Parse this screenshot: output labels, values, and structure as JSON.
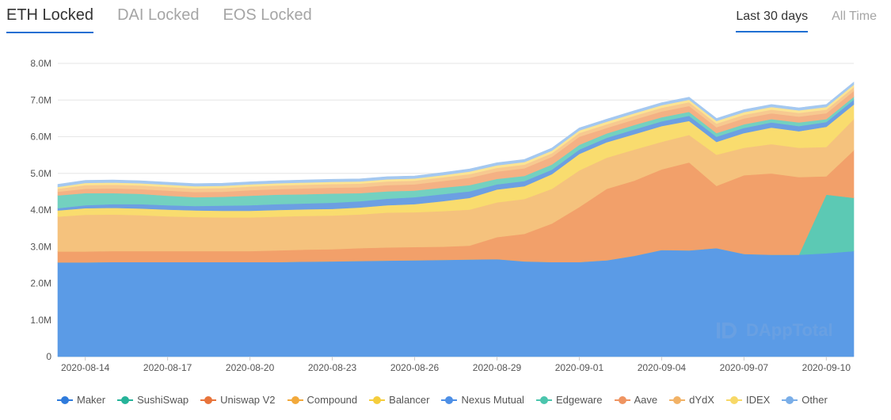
{
  "tabs": [
    "ETH Locked",
    "DAI Locked",
    "EOS Locked"
  ],
  "ranges": [
    "Last 30 days",
    "All Time"
  ],
  "watermark": "DAppTotal",
  "chart_data": {
    "type": "area",
    "stacked": true,
    "x": [
      "2020-08-13",
      "2020-08-14",
      "2020-08-15",
      "2020-08-16",
      "2020-08-17",
      "2020-08-18",
      "2020-08-19",
      "2020-08-20",
      "2020-08-21",
      "2020-08-22",
      "2020-08-23",
      "2020-08-24",
      "2020-08-25",
      "2020-08-26",
      "2020-08-27",
      "2020-08-28",
      "2020-08-29",
      "2020-08-30",
      "2020-08-31",
      "2020-09-01",
      "2020-09-02",
      "2020-09-03",
      "2020-09-04",
      "2020-09-05",
      "2020-09-06",
      "2020-09-07",
      "2020-09-08",
      "2020-09-09",
      "2020-09-10",
      "2020-09-11"
    ],
    "x_ticks": [
      "2020-08-14",
      "2020-08-17",
      "2020-08-20",
      "2020-08-23",
      "2020-08-26",
      "2020-08-29",
      "2020-09-01",
      "2020-09-04",
      "2020-09-07",
      "2020-09-10"
    ],
    "y_ticks": [
      "0",
      "1.0M",
      "2.0M",
      "3.0M",
      "4.0M",
      "5.0M",
      "6.0M",
      "7.0M",
      "8.0M"
    ],
    "ylim": [
      0,
      8.0
    ],
    "y_unit": "M",
    "grid": true,
    "legend_position": "bottom",
    "series": [
      {
        "name": "Maker",
        "color": "#5b9be6",
        "values": [
          2.57,
          2.57,
          2.58,
          2.58,
          2.58,
          2.58,
          2.58,
          2.58,
          2.58,
          2.59,
          2.6,
          2.61,
          2.62,
          2.63,
          2.64,
          2.65,
          2.66,
          2.6,
          2.58,
          2.58,
          2.63,
          2.75,
          2.91,
          2.9,
          2.96,
          2.8,
          2.78,
          2.78,
          2.82,
          2.88
        ]
      },
      {
        "name": "SushiSwap",
        "color": "#5cc9b4",
        "values": [
          0,
          0,
          0,
          0,
          0,
          0,
          0,
          0,
          0,
          0,
          0,
          0,
          0,
          0,
          0,
          0,
          0,
          0,
          0,
          0,
          0,
          0,
          0,
          0,
          0,
          0,
          0,
          0,
          1.6,
          1.45
        ]
      },
      {
        "name": "Uniswap V2",
        "color": "#f2a06a",
        "values": [
          0.3,
          0.3,
          0.3,
          0.3,
          0.3,
          0.3,
          0.3,
          0.3,
          0.32,
          0.33,
          0.33,
          0.35,
          0.36,
          0.36,
          0.36,
          0.38,
          0.6,
          0.75,
          1.05,
          1.5,
          1.95,
          2.05,
          2.2,
          2.4,
          1.7,
          2.15,
          2.22,
          2.12,
          0.5,
          1.3
        ]
      },
      {
        "name": "Compound",
        "color": "#f5c27d",
        "values": [
          0.95,
          1.0,
          1.0,
          0.98,
          0.95,
          0.93,
          0.92,
          0.92,
          0.92,
          0.92,
          0.92,
          0.92,
          0.95,
          0.95,
          0.97,
          0.98,
          0.95,
          0.95,
          0.95,
          1.0,
          0.85,
          0.85,
          0.75,
          0.75,
          0.85,
          0.75,
          0.8,
          0.8,
          0.8,
          0.85
        ]
      },
      {
        "name": "Balancer",
        "color": "#f9dc6e",
        "values": [
          0.17,
          0.18,
          0.18,
          0.18,
          0.18,
          0.18,
          0.18,
          0.18,
          0.18,
          0.18,
          0.18,
          0.19,
          0.2,
          0.22,
          0.27,
          0.32,
          0.35,
          0.35,
          0.4,
          0.45,
          0.42,
          0.42,
          0.43,
          0.38,
          0.35,
          0.4,
          0.45,
          0.45,
          0.55,
          0.4
        ]
      },
      {
        "name": "Nexus Mutual",
        "color": "#6c9fe2",
        "values": [
          0.06,
          0.08,
          0.1,
          0.12,
          0.12,
          0.12,
          0.14,
          0.15,
          0.16,
          0.16,
          0.17,
          0.17,
          0.18,
          0.19,
          0.19,
          0.18,
          0.14,
          0.14,
          0.12,
          0.12,
          0.12,
          0.13,
          0.13,
          0.14,
          0.14,
          0.14,
          0.14,
          0.14,
          0.13,
          0.13
        ]
      },
      {
        "name": "Edgeware",
        "color": "#73d1c0",
        "values": [
          0.35,
          0.33,
          0.3,
          0.28,
          0.26,
          0.24,
          0.24,
          0.26,
          0.26,
          0.25,
          0.25,
          0.22,
          0.2,
          0.18,
          0.18,
          0.17,
          0.15,
          0.14,
          0.14,
          0.13,
          0.12,
          0.12,
          0.11,
          0.11,
          0.1,
          0.1,
          0.09,
          0.1,
          0.08,
          0.08
        ]
      },
      {
        "name": "Aave",
        "color": "#f4b184",
        "values": [
          0.1,
          0.12,
          0.13,
          0.13,
          0.14,
          0.14,
          0.14,
          0.15,
          0.15,
          0.16,
          0.16,
          0.16,
          0.17,
          0.17,
          0.18,
          0.2,
          0.2,
          0.21,
          0.21,
          0.22,
          0.15,
          0.15,
          0.16,
          0.16,
          0.16,
          0.16,
          0.16,
          0.16,
          0.16,
          0.16
        ]
      },
      {
        "name": "dYdX",
        "color": "#f7c990",
        "values": [
          0.08,
          0.1,
          0.1,
          0.1,
          0.1,
          0.1,
          0.1,
          0.1,
          0.1,
          0.1,
          0.1,
          0.1,
          0.1,
          0.1,
          0.1,
          0.1,
          0.1,
          0.1,
          0.1,
          0.1,
          0.1,
          0.1,
          0.1,
          0.1,
          0.1,
          0.1,
          0.1,
          0.1,
          0.1,
          0.1
        ]
      },
      {
        "name": "IDEX",
        "color": "#fbe493",
        "values": [
          0.05,
          0.06,
          0.06,
          0.06,
          0.06,
          0.06,
          0.06,
          0.06,
          0.06,
          0.06,
          0.06,
          0.06,
          0.06,
          0.06,
          0.06,
          0.07,
          0.07,
          0.07,
          0.07,
          0.07,
          0.07,
          0.07,
          0.07,
          0.07,
          0.07,
          0.07,
          0.07,
          0.07,
          0.07,
          0.07
        ]
      },
      {
        "name": "Other",
        "color": "#a4c8f0",
        "values": [
          0.07,
          0.07,
          0.07,
          0.07,
          0.07,
          0.07,
          0.07,
          0.07,
          0.07,
          0.07,
          0.07,
          0.07,
          0.07,
          0.07,
          0.07,
          0.07,
          0.07,
          0.07,
          0.07,
          0.07,
          0.07,
          0.07,
          0.07,
          0.07,
          0.07,
          0.07,
          0.07,
          0.07,
          0.07,
          0.07
        ]
      }
    ],
    "legend_dots": [
      "#2f7bdc",
      "#26b399",
      "#e8743b",
      "#f2a93b",
      "#f5cd3c",
      "#4d8fe6",
      "#4bc5ad",
      "#ef9461",
      "#f2b266",
      "#f7d867",
      "#7aaee8"
    ]
  }
}
